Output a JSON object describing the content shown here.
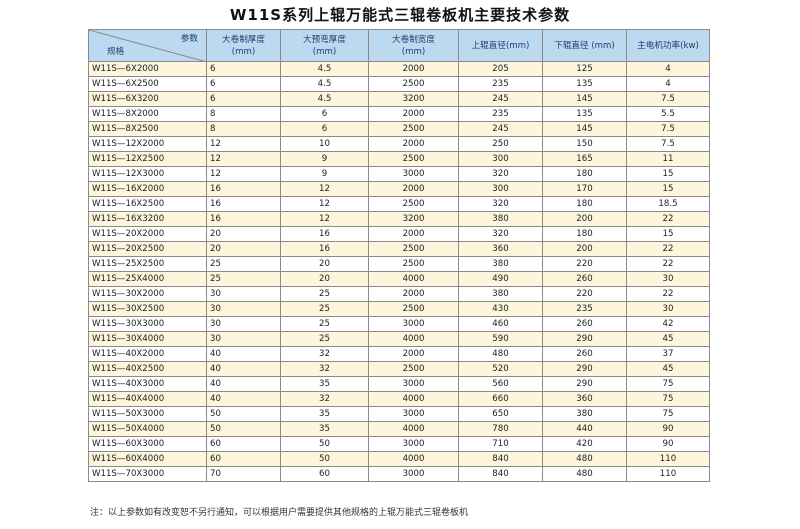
{
  "title": "W11S系列上辊万能式三辊卷板机主要技术参数",
  "header": {
    "param_label": "参数",
    "model_label": "规格",
    "cols": [
      {
        "line1": "大卷制厚度",
        "line2": "(mm)"
      },
      {
        "line1": "大预弯厚度",
        "line2": "(mm)"
      },
      {
        "line1": "大卷制宽度",
        "line2": "(mm)"
      },
      {
        "line1": "上辊直径(mm)",
        "line2": ""
      },
      {
        "line1": "下辊直径 (mm)",
        "line2": ""
      },
      {
        "line1": "主电机功率(kw)",
        "line2": ""
      }
    ]
  },
  "rows": [
    [
      "W11S—6X2000",
      "6",
      "4.5",
      "2000",
      "205",
      "125",
      "4"
    ],
    [
      "W11S—6X2500",
      "6",
      "4.5",
      "2500",
      "235",
      "135",
      "4"
    ],
    [
      "W11S—6X3200",
      "6",
      "4.5",
      "3200",
      "245",
      "145",
      "7.5"
    ],
    [
      "W11S—8X2000",
      "8",
      "6",
      "2000",
      "235",
      "135",
      "5.5"
    ],
    [
      "W11S—8X2500",
      "8",
      "6",
      "2500",
      "245",
      "145",
      "7.5"
    ],
    [
      "W11S—12X2000",
      "12",
      "10",
      "2000",
      "250",
      "150",
      "7.5"
    ],
    [
      "W11S—12X2500",
      "12",
      "9",
      "2500",
      "300",
      "165",
      "11"
    ],
    [
      "W11S—12X3000",
      "12",
      "9",
      "3000",
      "320",
      "180",
      "15"
    ],
    [
      "W11S—16X2000",
      "16",
      "12",
      "2000",
      "300",
      "170",
      "15"
    ],
    [
      "W11S—16X2500",
      "16",
      "12",
      "2500",
      "320",
      "180",
      "18.5"
    ],
    [
      "W11S—16X3200",
      "16",
      "12",
      "3200",
      "380",
      "200",
      "22"
    ],
    [
      "W11S—20X2000",
      "20",
      "16",
      "2000",
      "320",
      "180",
      "15"
    ],
    [
      "W11S—20X2500",
      "20",
      "16",
      "2500",
      "360",
      "200",
      "22"
    ],
    [
      "W11S—25X2500",
      "25",
      "20",
      "2500",
      "380",
      "220",
      "22"
    ],
    [
      "W11S—25X4000",
      "25",
      "20",
      "4000",
      "490",
      "260",
      "30"
    ],
    [
      "W11S—30X2000",
      "30",
      "25",
      "2000",
      "380",
      "220",
      "22"
    ],
    [
      "W11S—30X2500",
      "30",
      "25",
      "2500",
      "430",
      "235",
      "30"
    ],
    [
      "W11S—30X3000",
      "30",
      "25",
      "3000",
      "460",
      "260",
      "42"
    ],
    [
      "W11S—30X4000",
      "30",
      "25",
      "4000",
      "590",
      "290",
      "45"
    ],
    [
      "W11S—40X2000",
      "40",
      "32",
      "2000",
      "480",
      "260",
      "37"
    ],
    [
      "W11S—40X2500",
      "40",
      "32",
      "2500",
      "520",
      "290",
      "45"
    ],
    [
      "W11S—40X3000",
      "40",
      "35",
      "3000",
      "560",
      "290",
      "75"
    ],
    [
      "W11S—40X4000",
      "40",
      "32",
      "4000",
      "660",
      "360",
      "75"
    ],
    [
      "W11S—50X3000",
      "50",
      "35",
      "3000",
      "650",
      "380",
      "75"
    ],
    [
      "W11S—50X4000",
      "50",
      "35",
      "4000",
      "780",
      "440",
      "90"
    ],
    [
      "W11S—60X3000",
      "60",
      "50",
      "3000",
      "710",
      "420",
      "90"
    ],
    [
      "W11S—60X4000",
      "60",
      "50",
      "4000",
      "840",
      "480",
      "110"
    ],
    [
      "W11S—70X3000",
      "70",
      "60",
      "3000",
      "840",
      "480",
      "110"
    ]
  ],
  "note": "注：以上参数如有改变恕不另行通知，可以根据用户需要提供其他规格的上辊万能式三辊卷板机",
  "colors": {
    "header_bg": "#bcd9ef",
    "row_alt": "#fdf6dc",
    "border": "#8a8a8a"
  }
}
